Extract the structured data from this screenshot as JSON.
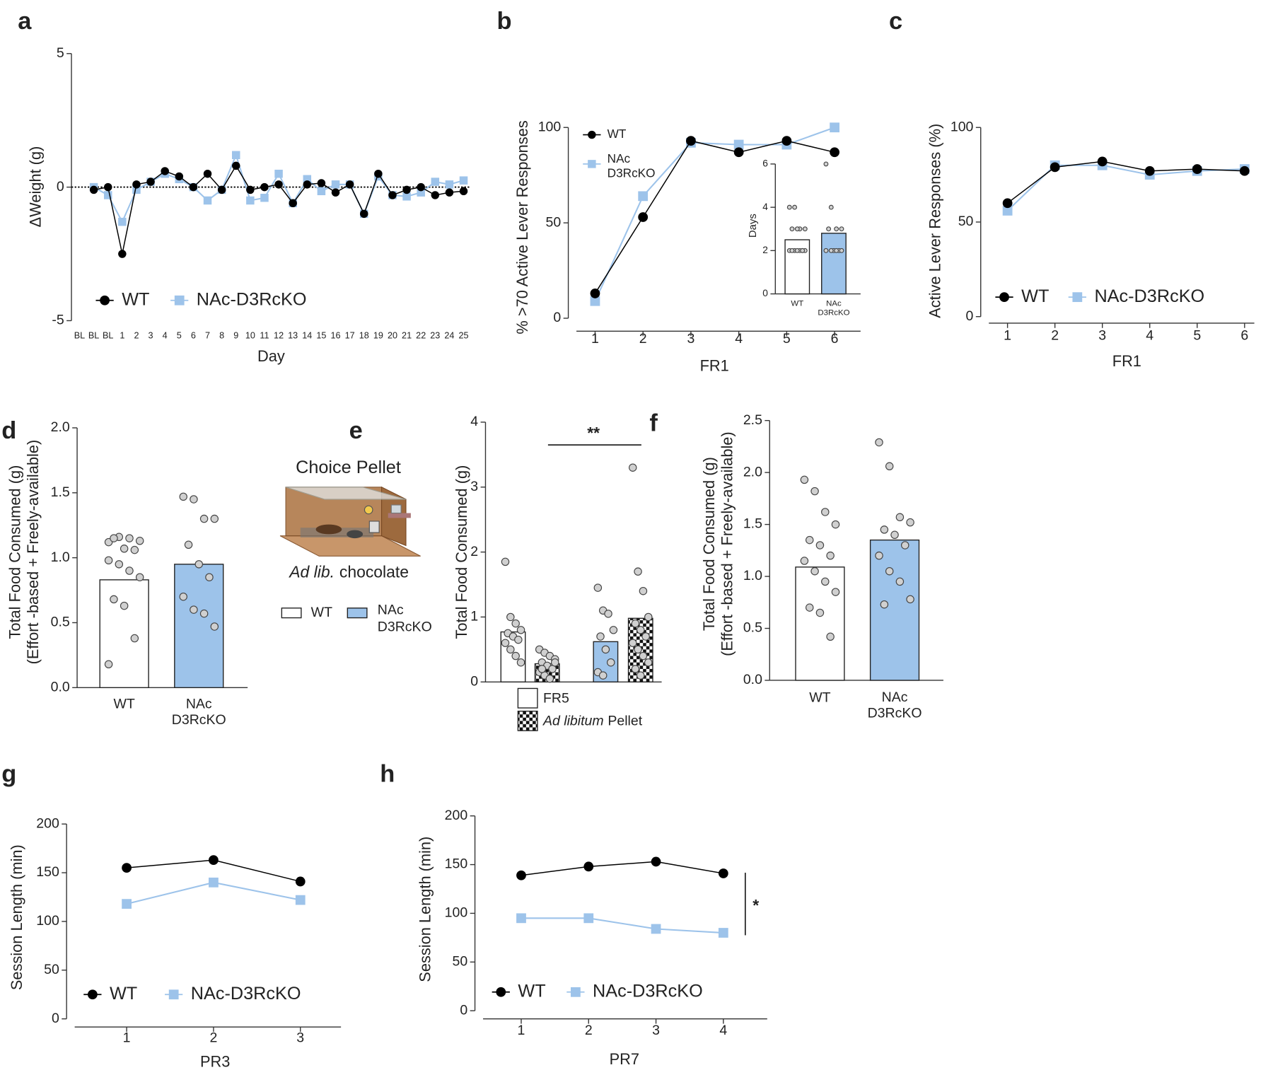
{
  "chart_data": [
    {
      "label": "a",
      "type": "line",
      "ylabel": "ΔWeight (g)",
      "xlabel": "Day",
      "categories": [
        "BL",
        "BL",
        "BL",
        "1",
        "2",
        "3",
        "4",
        "5",
        "6",
        "7",
        "8",
        "9",
        "10",
        "11",
        "12",
        "13",
        "14",
        "15",
        "16",
        "17",
        "18",
        "19",
        "20",
        "21",
        "22",
        "23",
        "24",
        "25"
      ],
      "series": [
        {
          "name": "WT",
          "color": "#000000",
          "marker": "circle",
          "values": [
            null,
            -0.1,
            0.0,
            -2.5,
            0.1,
            0.2,
            0.6,
            0.4,
            0.0,
            0.5,
            -0.1,
            0.8,
            -0.1,
            0.0,
            0.1,
            -0.6,
            0.1,
            0.15,
            -0.2,
            0.1,
            -1.0,
            0.5,
            -0.3,
            -0.1,
            0.0,
            -0.3,
            -0.2,
            -0.15
          ]
        },
        {
          "name": "NAc-D3RcKO",
          "color": "#9dc3ea",
          "marker": "square",
          "values": [
            null,
            0.0,
            -0.3,
            -1.3,
            -0.1,
            0.2,
            0.5,
            0.3,
            0.0,
            -0.5,
            -0.1,
            1.2,
            -0.5,
            -0.4,
            0.5,
            -0.6,
            0.3,
            -0.15,
            0.1,
            0.1,
            -1.0,
            0.4,
            -0.3,
            -0.35,
            -0.2,
            0.2,
            0.1,
            0.25
          ]
        }
      ],
      "ylim": [
        -5,
        5
      ],
      "yticks": [
        -5,
        0,
        5
      ],
      "hline": 0,
      "legend": "bottom-left"
    },
    {
      "label": "b",
      "type": "line",
      "ylabel": "% >70 Active Lever Responses",
      "xlabel": "FR1",
      "categories": [
        "1",
        "2",
        "3",
        "4",
        "5",
        "6"
      ],
      "series": [
        {
          "name": "WT",
          "color": "#000000",
          "marker": "circle",
          "values": [
            13,
            53,
            93,
            87,
            93,
            87
          ]
        },
        {
          "name": "NAc D3RcKO",
          "color": "#9dc3ea",
          "marker": "square",
          "values": [
            9,
            64,
            92,
            91,
            91,
            100
          ]
        }
      ],
      "ylim": [
        0,
        100
      ],
      "yticks": [
        0,
        50,
        100
      ],
      "legend": "top-left"
    },
    {
      "type": "bar",
      "ylabel": "Days",
      "categories": [
        "WT",
        "NAc D3RcKO"
      ],
      "values": [
        2.5,
        2.8
      ],
      "colors": [
        "#ffffff",
        "#9dc3ea"
      ],
      "points": [
        [
          4,
          4,
          3,
          3,
          3,
          3,
          2,
          2,
          2,
          2,
          2,
          2,
          2,
          2
        ],
        [
          6,
          4,
          3,
          3,
          3,
          2,
          2,
          2,
          2,
          2,
          2
        ]
      ],
      "ylim": [
        0,
        6
      ],
      "yticks": [
        0,
        2,
        4,
        6
      ]
    },
    {
      "label": "c",
      "type": "line",
      "ylabel": "Active Lever Responses (%)",
      "xlabel": "FR1",
      "categories": [
        "1",
        "2",
        "3",
        "4",
        "5",
        "6"
      ],
      "series": [
        {
          "name": "WT",
          "color": "#000000",
          "marker": "circle",
          "values": [
            60,
            79,
            82,
            77,
            78,
            77
          ]
        },
        {
          "name": "NAc-D3RcKO",
          "color": "#9dc3ea",
          "marker": "square",
          "values": [
            56,
            80,
            80,
            75,
            77,
            78
          ]
        }
      ],
      "ylim": [
        0,
        100
      ],
      "yticks": [
        0,
        50,
        100
      ],
      "legend": "bottom-left"
    },
    {
      "label": "d",
      "type": "bar",
      "ylabel": [
        "Total Food Consumed (g)",
        "(Effort -based + Freely-available)"
      ],
      "categories": [
        "WT",
        "NAc D3RcKO"
      ],
      "values": [
        0.83,
        0.95
      ],
      "colors": [
        "#ffffff",
        "#9dc3ea"
      ],
      "points": [
        [
          1.12,
          1.16,
          1.15,
          1.13,
          1.15,
          1.07,
          1.06,
          0.98,
          0.95,
          0.9,
          0.85,
          0.68,
          0.63,
          0.38,
          0.18
        ],
        [
          1.47,
          1.45,
          1.3,
          1.3,
          1.1,
          0.95,
          0.85,
          0.7,
          0.6,
          0.57,
          0.47
        ]
      ],
      "ylim": [
        0,
        2
      ],
      "yticks": [
        {
          "value": 0,
          "label": "0.0"
        },
        0.5,
        {
          "value": 1,
          "label": "1.0"
        },
        1.5,
        {
          "value": 2,
          "label": "2.0"
        }
      ]
    },
    {
      "label": "e",
      "type": "bar",
      "title": "Choice Pellet",
      "caption": {
        "italic": "Ad lib.",
        "text": "chocolate"
      },
      "ylabel": "Total Food Consumed (g)",
      "categories": [
        null,
        null,
        null,
        null
      ],
      "values": [
        0.77,
        0.28,
        0.62,
        0.98
      ],
      "colors": [
        "#ffffff",
        "#ffffff",
        "#9dc3ea",
        "#9dc3ea"
      ],
      "patterns": [
        null,
        "checker",
        null,
        "checker"
      ],
      "points": [
        [
          1.85,
          1.0,
          0.9,
          0.8,
          0.75,
          0.7,
          0.65,
          0.6,
          0.5,
          0.4,
          0.3
        ],
        [
          0.5,
          0.45,
          0.4,
          0.35,
          0.3,
          0.25,
          0.2,
          0.15,
          0.1,
          0.05,
          0.3,
          0.2
        ],
        [
          1.45,
          1.1,
          1.05,
          0.8,
          0.7,
          0.5,
          0.3,
          0.15,
          0.1
        ],
        [
          3.3,
          1.7,
          1.4,
          1.0,
          0.9,
          0.8,
          0.7,
          0.6,
          0.5,
          0.4,
          0.3,
          0.2,
          0.1
        ]
      ],
      "ylim": [
        0,
        4
      ],
      "yticks": [
        0,
        1,
        2,
        3,
        4
      ],
      "annotation": "**",
      "legend": [
        {
          "name": "WT",
          "color": "#ffffff"
        },
        {
          "name": "NAc D3RcKO",
          "color": "#9dc3ea"
        }
      ],
      "pattern_legend": [
        {
          "name": "FR5",
          "pattern": null
        },
        {
          "italic": "Ad libitum",
          "name": "Pellet",
          "pattern": "checker"
        }
      ]
    },
    {
      "label": "f",
      "type": "bar",
      "ylabel": [
        "Total Food Consumed (g)",
        "(Effort -based + Freely-available)"
      ],
      "categories": [
        "WT",
        "NAc D3RcKO"
      ],
      "values": [
        1.09,
        1.35
      ],
      "colors": [
        "#ffffff",
        "#9dc3ea"
      ],
      "points": [
        [
          1.93,
          1.82,
          1.62,
          1.5,
          1.35,
          1.3,
          1.2,
          1.15,
          1.05,
          0.95,
          0.85,
          0.7,
          0.65,
          0.42
        ],
        [
          2.29,
          2.06,
          1.57,
          1.52,
          1.45,
          1.4,
          1.3,
          1.2,
          1.05,
          0.95,
          0.78,
          0.73
        ]
      ],
      "ylim": [
        0,
        2.5
      ],
      "yticks": [
        {
          "value": 0,
          "label": "0.0"
        },
        0.5,
        {
          "value": 1,
          "label": "1.0"
        },
        1.5,
        {
          "value": 2,
          "label": "2.0"
        },
        2.5
      ]
    },
    {
      "label": "g",
      "type": "line",
      "ylabel": "Session Length (min)",
      "xlabel": "PR3",
      "categories": [
        "1",
        "2",
        "3"
      ],
      "series": [
        {
          "name": "WT",
          "color": "#000000",
          "marker": "circle",
          "values": [
            155,
            163,
            141
          ]
        },
        {
          "name": "NAc-D3RcKO",
          "color": "#9dc3ea",
          "marker": "square",
          "values": [
            118,
            140,
            122
          ]
        }
      ],
      "ylim": [
        0,
        200
      ],
      "yticks": [
        0,
        50,
        100,
        150,
        200
      ],
      "legend": "bottom-left"
    },
    {
      "label": "h",
      "type": "line",
      "ylabel": "Session Length (min)",
      "xlabel": "PR7",
      "categories": [
        "1",
        "2",
        "3",
        "4"
      ],
      "series": [
        {
          "name": "WT",
          "color": "#000000",
          "marker": "circle",
          "values": [
            139,
            148,
            153,
            141
          ]
        },
        {
          "name": "NAc-D3RcKO",
          "color": "#9dc3ea",
          "marker": "square",
          "values": [
            95,
            95,
            84,
            80
          ]
        }
      ],
      "ylim": [
        0,
        200
      ],
      "yticks": [
        0,
        50,
        100,
        150,
        200
      ],
      "legend": "bottom-left",
      "annotation": "*"
    }
  ]
}
